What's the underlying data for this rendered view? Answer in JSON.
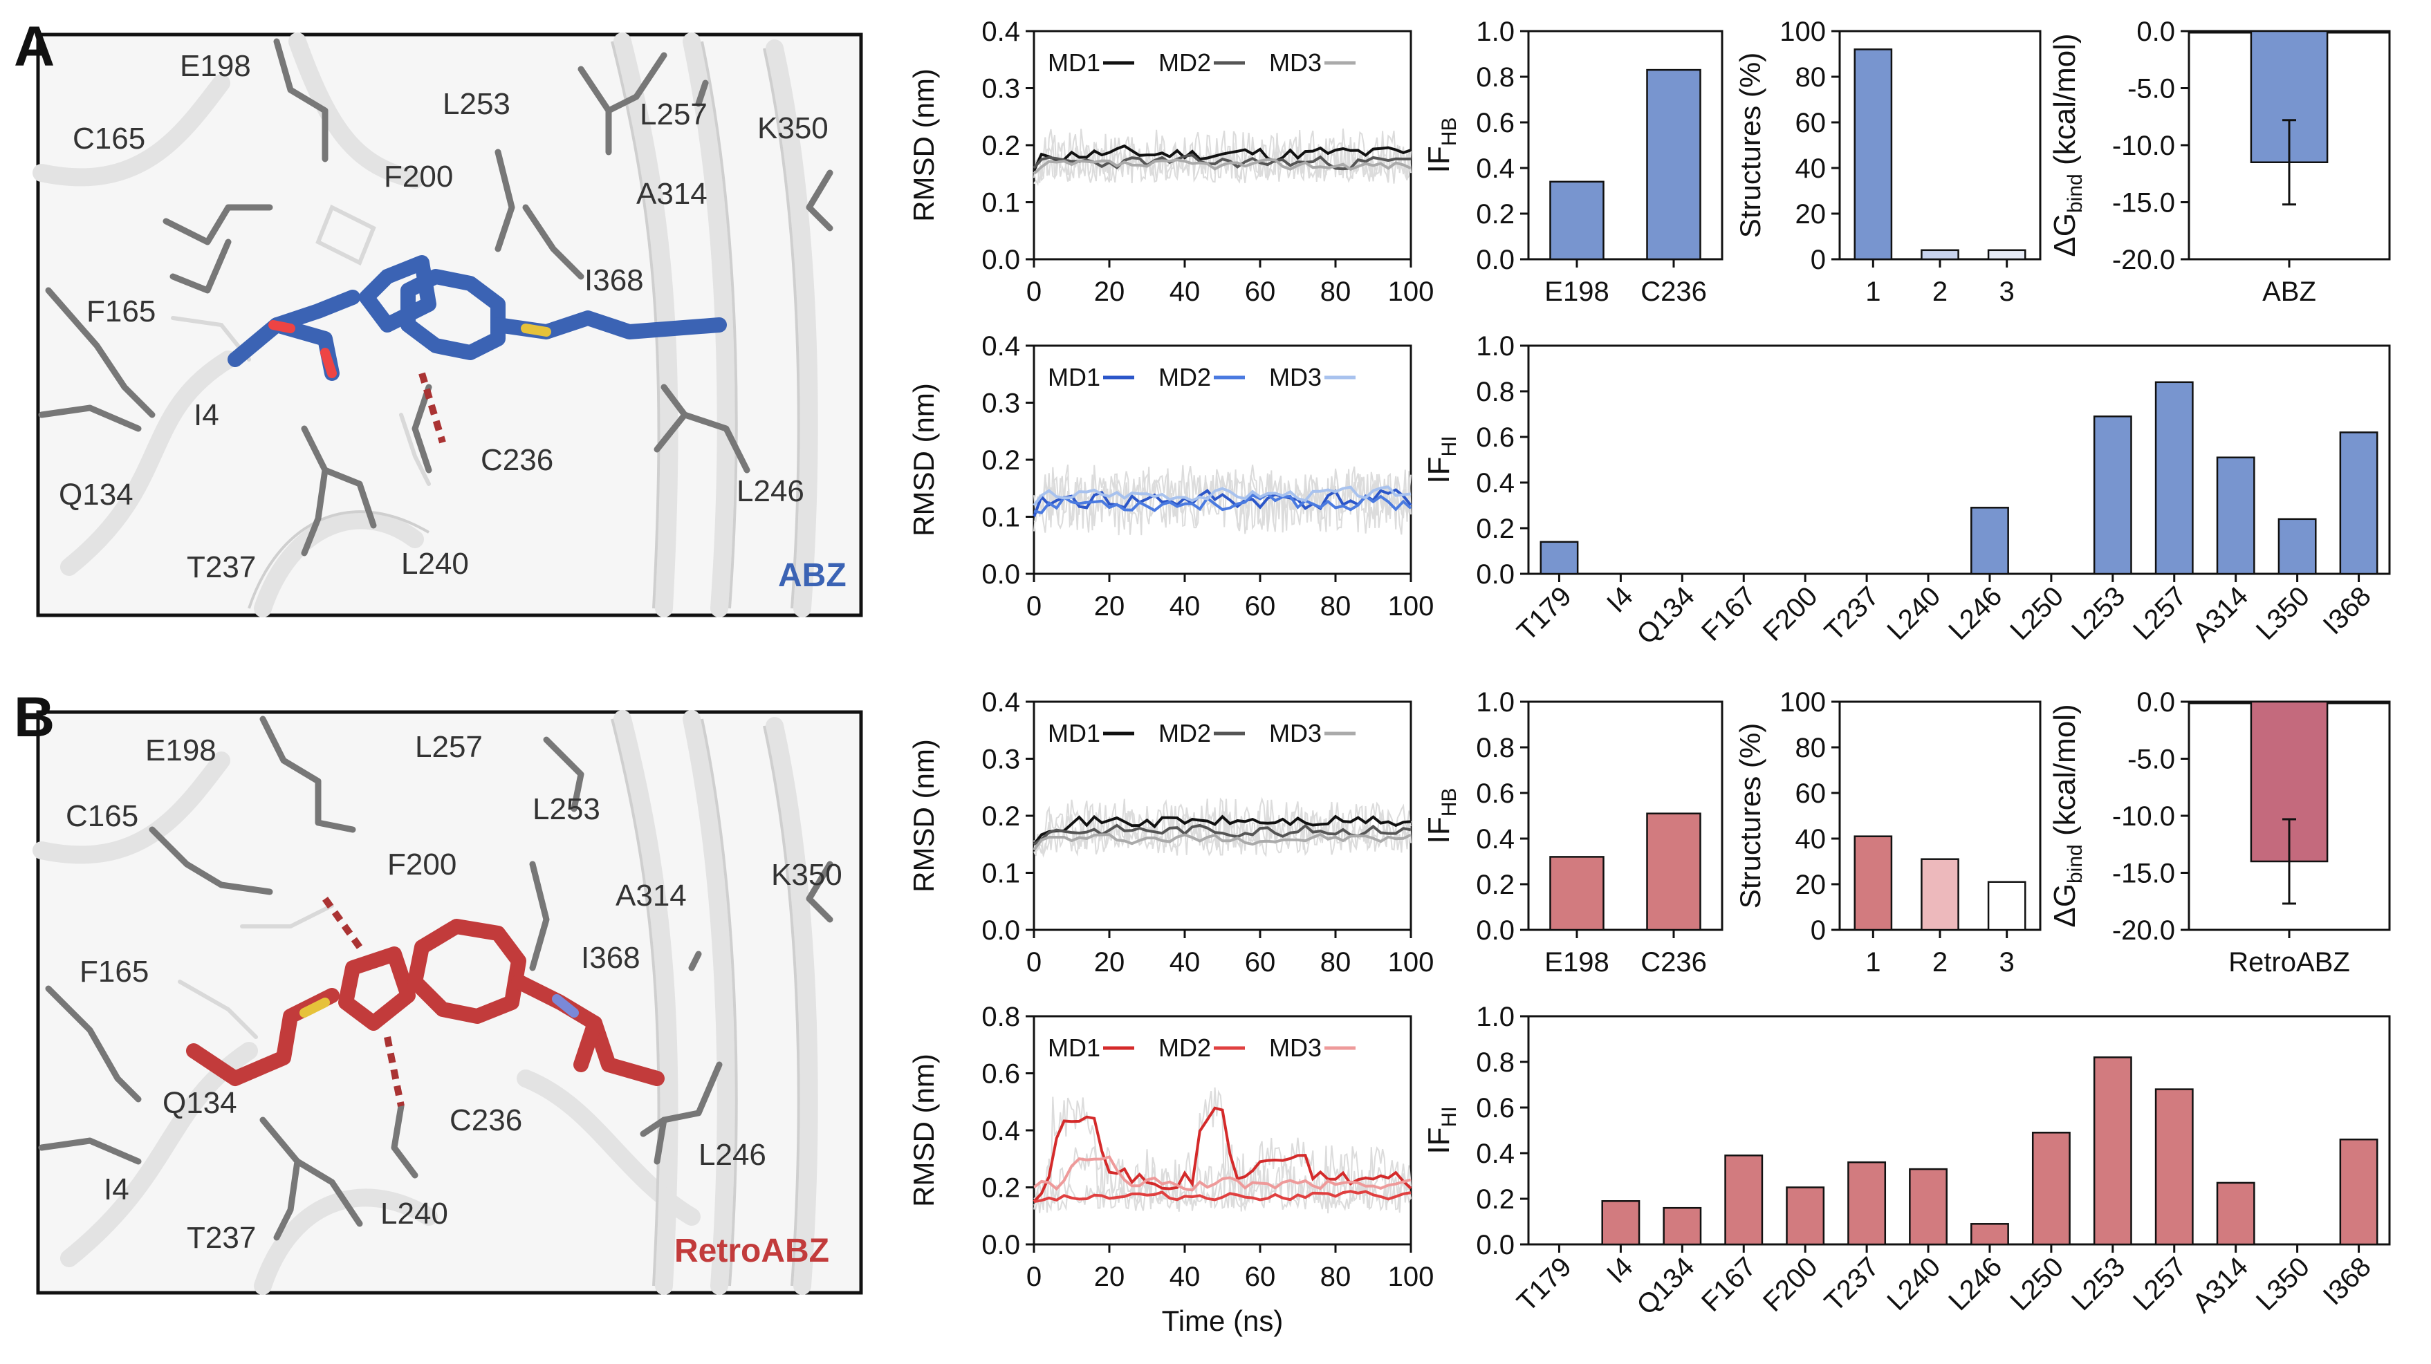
{
  "panels": {
    "A": {
      "letter": "A",
      "molecule_label": "ABZ",
      "residue_labels": [
        "E198",
        "L257",
        "L253",
        "K350",
        "C165",
        "F200",
        "A314",
        "I368",
        "F165",
        "I4",
        "C236",
        "Q134",
        "L246",
        "T237",
        "L240"
      ]
    },
    "B": {
      "letter": "B",
      "molecule_label": "RetroABZ",
      "residue_labels": [
        "E198",
        "L257",
        "C165",
        "L253",
        "F200",
        "K350",
        "A314",
        "I368",
        "F165",
        "Q134",
        "C236",
        "L246",
        "I4",
        "T237",
        "L240"
      ]
    }
  },
  "colors": {
    "abz_bar": "#7895cf",
    "retro_bar": "#d27b7f",
    "retro_bar_light": "#edb9bc",
    "abz_ligand": "#3b63b4",
    "retro_ligand": "#c23b3b"
  },
  "chart_data": [
    {
      "id": "A_rmsd_top",
      "type": "line",
      "ylabel": "RMSD (nm)",
      "xlabel": "",
      "xlim": [
        0,
        100
      ],
      "ylim": [
        0,
        0.4
      ],
      "xticks": [
        "0",
        "20",
        "40",
        "60",
        "80",
        "100"
      ],
      "yticks": [
        "0.0",
        "0.1",
        "0.2",
        "0.3",
        "0.4"
      ],
      "legend": [
        "MD1",
        "MD2",
        "MD3"
      ],
      "legend_colors": [
        "#111111",
        "#555555",
        "#aaaaaa"
      ],
      "series": [
        {
          "name": "MD1",
          "mean": 0.185,
          "amp": 0.018,
          "seed": 11,
          "start": 0.155
        },
        {
          "name": "MD2",
          "mean": 0.17,
          "amp": 0.015,
          "seed": 23,
          "start": 0.16
        },
        {
          "name": "MD3",
          "mean": 0.165,
          "amp": 0.012,
          "seed": 37,
          "start": 0.15
        }
      ]
    },
    {
      "id": "A_rmsd_bottom",
      "type": "line",
      "ylabel": "RMSD (nm)",
      "xlabel": "",
      "xlim": [
        0,
        100
      ],
      "ylim": [
        0,
        0.4
      ],
      "xticks": [
        "0",
        "20",
        "40",
        "60",
        "80",
        "100"
      ],
      "yticks": [
        "0.0",
        "0.1",
        "0.2",
        "0.3",
        "0.4"
      ],
      "legend": [
        "MD1",
        "MD2",
        "MD3"
      ],
      "legend_colors": [
        "#2b56c9",
        "#4a7ae0",
        "#a8c2ee"
      ],
      "series": [
        {
          "name": "MD1",
          "mean": 0.13,
          "amp": 0.025,
          "seed": 41,
          "start": 0.1
        },
        {
          "name": "MD2",
          "mean": 0.125,
          "amp": 0.02,
          "seed": 53,
          "start": 0.11
        },
        {
          "name": "MD3",
          "mean": 0.14,
          "amp": 0.015,
          "seed": 67,
          "start": 0.12
        }
      ]
    },
    {
      "id": "B_rmsd_top",
      "type": "line",
      "ylabel": "RMSD (nm)",
      "xlabel": "",
      "xlim": [
        0,
        100
      ],
      "ylim": [
        0,
        0.4
      ],
      "xticks": [
        "0",
        "20",
        "40",
        "60",
        "80",
        "100"
      ],
      "yticks": [
        "0.0",
        "0.1",
        "0.2",
        "0.3",
        "0.4"
      ],
      "legend": [
        "MD1",
        "MD2",
        "MD3"
      ],
      "legend_colors": [
        "#111111",
        "#555555",
        "#aaaaaa"
      ],
      "series": [
        {
          "name": "MD1",
          "mean": 0.19,
          "amp": 0.016,
          "seed": 71,
          "start": 0.15
        },
        {
          "name": "MD2",
          "mean": 0.175,
          "amp": 0.014,
          "seed": 83,
          "start": 0.15
        },
        {
          "name": "MD3",
          "mean": 0.16,
          "amp": 0.012,
          "seed": 97,
          "start": 0.14
        }
      ]
    },
    {
      "id": "B_rmsd_bottom",
      "type": "line",
      "ylabel": "RMSD (nm)",
      "xlabel": "Time (ns)",
      "xlim": [
        0,
        100
      ],
      "ylim": [
        0,
        0.8
      ],
      "xticks": [
        "0",
        "20",
        "40",
        "60",
        "80",
        "100"
      ],
      "yticks": [
        "0.0",
        "0.2",
        "0.4",
        "0.6",
        "0.8"
      ],
      "legend": [
        "MD1",
        "MD2",
        "MD3"
      ],
      "legend_colors": [
        "#d42a2a",
        "#e04040",
        "#ee9a9a"
      ],
      "series": [
        {
          "name": "MD1",
          "mean": 0.23,
          "amp": 0.05,
          "seed": 101,
          "start": 0.15,
          "spikes": [
            [
              5,
              16,
              0.45
            ],
            [
              44,
              50,
              0.48
            ],
            [
              60,
              72,
              0.3
            ]
          ]
        },
        {
          "name": "MD2",
          "mean": 0.17,
          "amp": 0.02,
          "seed": 113,
          "start": 0.15
        },
        {
          "name": "MD3",
          "mean": 0.21,
          "amp": 0.03,
          "seed": 127,
          "start": 0.2,
          "spikes": [
            [
              10,
              20,
              0.3
            ]
          ]
        }
      ]
    },
    {
      "id": "A_ifhb",
      "type": "bar",
      "ylabel": "IF_HB",
      "ylabel_main": "IF",
      "ylabel_sub": "HB",
      "categories": [
        "E198",
        "C236"
      ],
      "values": [
        0.34,
        0.83
      ],
      "ylim": [
        0,
        1.0
      ],
      "yticks": [
        "0.0",
        "0.2",
        "0.4",
        "0.6",
        "0.8",
        "1.0"
      ]
    },
    {
      "id": "A_structures",
      "type": "bar",
      "ylabel": "Structures (%)",
      "categories": [
        "1",
        "2",
        "3"
      ],
      "values": [
        92,
        4,
        4
      ],
      "ylim": [
        0,
        100
      ],
      "yticks": [
        "0",
        "20",
        "40",
        "60",
        "80",
        "100"
      ]
    },
    {
      "id": "A_dg",
      "type": "bar",
      "ylabel": "ΔG_bind (kcal/mol)",
      "ylabel_main": "ΔG",
      "ylabel_sub": "bind",
      "ylabel_tail": " (kcal/mol)",
      "categories": [
        "ABZ"
      ],
      "values": [
        -11.5
      ],
      "errors": [
        3.7
      ],
      "ylim": [
        -20,
        0
      ],
      "yticks": [
        "0.0",
        "-5.0",
        "-10.0",
        "-15.0",
        "-20.0"
      ]
    },
    {
      "id": "A_ifhi",
      "type": "bar",
      "ylabel": "IF_HI",
      "ylabel_main": "IF",
      "ylabel_sub": "HI",
      "categories": [
        "T179",
        "I4",
        "Q134",
        "F167",
        "F200",
        "T237",
        "L240",
        "L246",
        "L250",
        "L253",
        "L257",
        "A314",
        "L350",
        "I368"
      ],
      "values": [
        0.14,
        0,
        0,
        0,
        0,
        0,
        0,
        0.29,
        0,
        0.69,
        0.84,
        0.51,
        0.24,
        0.62
      ],
      "ylim": [
        0,
        1.0
      ],
      "yticks": [
        "0.0",
        "0.2",
        "0.4",
        "0.6",
        "0.8",
        "1.0"
      ]
    },
    {
      "id": "B_ifhb",
      "type": "bar",
      "ylabel": "IF_HB",
      "ylabel_main": "IF",
      "ylabel_sub": "HB",
      "categories": [
        "E198",
        "C236"
      ],
      "values": [
        0.32,
        0.51
      ],
      "ylim": [
        0,
        1.0
      ],
      "yticks": [
        "0.0",
        "0.2",
        "0.4",
        "0.6",
        "0.8",
        "1.0"
      ]
    },
    {
      "id": "B_structures",
      "type": "bar",
      "ylabel": "Structures (%)",
      "categories": [
        "1",
        "2",
        "3"
      ],
      "values": [
        41,
        31,
        21
      ],
      "ylim": [
        0,
        100
      ],
      "yticks": [
        "0",
        "20",
        "40",
        "60",
        "80",
        "100"
      ]
    },
    {
      "id": "B_dg",
      "type": "bar",
      "ylabel": "ΔG_bind (kcal/mol)",
      "ylabel_main": "ΔG",
      "ylabel_sub": "bind",
      "ylabel_tail": " (kcal/mol)",
      "categories": [
        "RetroABZ"
      ],
      "values": [
        -14.0
      ],
      "errors": [
        3.7
      ],
      "ylim": [
        -20,
        0
      ],
      "yticks": [
        "0.0",
        "-5.0",
        "-10.0",
        "-15.0",
        "-20.0"
      ]
    },
    {
      "id": "B_ifhi",
      "type": "bar",
      "ylabel": "IF_HI",
      "ylabel_main": "IF",
      "ylabel_sub": "HI",
      "categories": [
        "T179",
        "I4",
        "Q134",
        "F167",
        "F200",
        "T237",
        "L240",
        "L246",
        "L250",
        "L253",
        "L257",
        "A314",
        "L350",
        "I368"
      ],
      "values": [
        0,
        0.19,
        0.16,
        0.39,
        0.25,
        0.36,
        0.33,
        0.09,
        0.49,
        0.82,
        0.68,
        0.27,
        0,
        0.46
      ],
      "ylim": [
        0,
        1.0
      ],
      "yticks": [
        "0.0",
        "0.2",
        "0.4",
        "0.6",
        "0.8",
        "1.0"
      ]
    }
  ]
}
